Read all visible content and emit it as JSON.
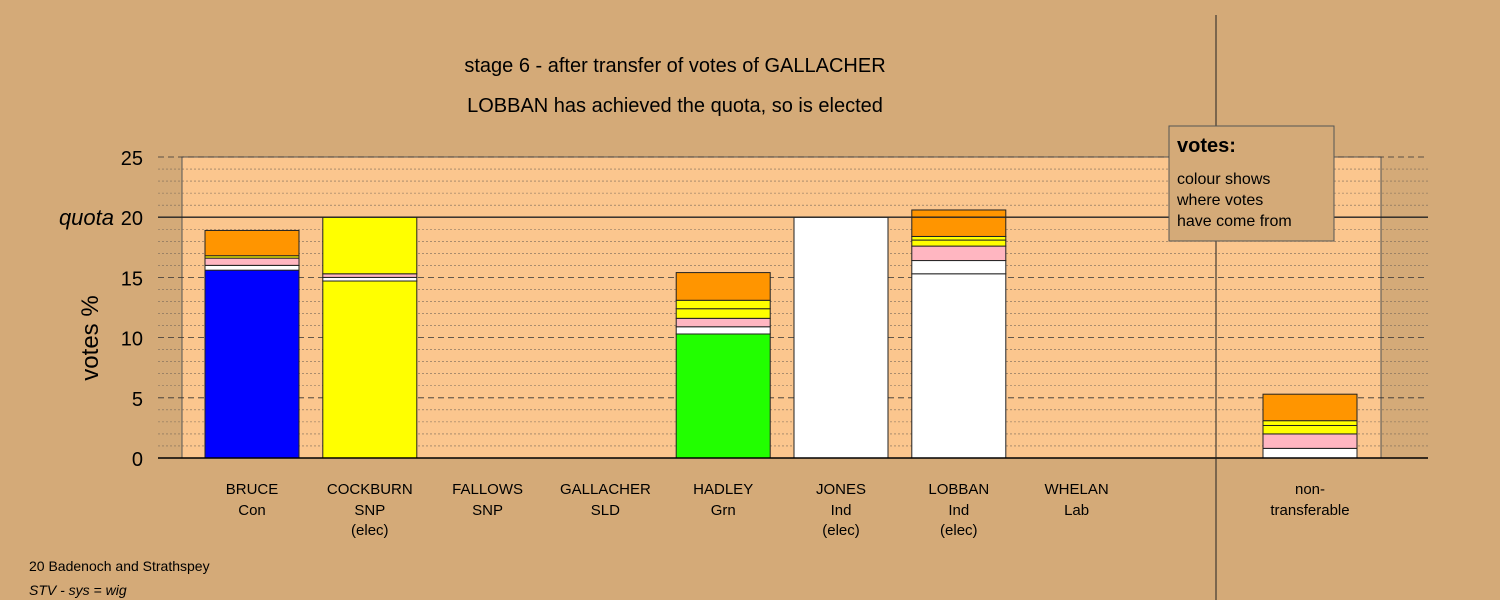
{
  "chart_data": {
    "type": "bar",
    "stacked": true,
    "title": "stage 6 - after transfer of votes of GALLACHER",
    "subtitle": "LOBBAN has achieved the quota, so is elected",
    "ylabel": "votes %",
    "ylim": [
      0,
      25
    ],
    "yticks": [
      "0",
      "5",
      "10",
      "15",
      "20",
      "25"
    ],
    "quota_label": "quota",
    "quota_value": 20,
    "grid": true,
    "colors": {
      "Con": "#0000ff",
      "SNP": "#ffff00",
      "Grn": "#22ff00",
      "Ind": "#ffffff",
      "Lab": "#ffb6c1",
      "SLD": "#ff9500",
      "background": "#d4aa78",
      "plot_area": "#fbc68e"
    },
    "candidates": [
      {
        "name": "BRUCE",
        "party": "Con",
        "status": "",
        "segments": [
          {
            "from": "Con",
            "value": 15.6
          },
          {
            "from": "Ind",
            "value": 0.4
          },
          {
            "from": "Lab",
            "value": 0.6
          },
          {
            "from": "SNP",
            "value": 0.2
          },
          {
            "from": "SLD",
            "value": 2.1
          }
        ]
      },
      {
        "name": "COCKBURN",
        "party": "SNP",
        "status": "(elec)",
        "segments": [
          {
            "from": "SNP",
            "value": 14.7
          },
          {
            "from": "Ind",
            "value": 0.3
          },
          {
            "from": "Lab",
            "value": 0.3
          },
          {
            "from": "SNP",
            "value": 4.7
          }
        ]
      },
      {
        "name": "FALLOWS",
        "party": "SNP",
        "status": "",
        "segments": []
      },
      {
        "name": "GALLACHER",
        "party": "SLD",
        "status": "",
        "segments": []
      },
      {
        "name": "HADLEY",
        "party": "Grn",
        "status": "",
        "segments": [
          {
            "from": "Grn",
            "value": 10.3
          },
          {
            "from": "Ind",
            "value": 0.6
          },
          {
            "from": "Lab",
            "value": 0.7
          },
          {
            "from": "SNP",
            "value": 0.8
          },
          {
            "from": "SNP",
            "value": 0.7
          },
          {
            "from": "SLD",
            "value": 2.3
          }
        ]
      },
      {
        "name": "JONES",
        "party": "Ind",
        "status": "(elec)",
        "segments": [
          {
            "from": "Ind",
            "value": 20.0
          }
        ]
      },
      {
        "name": "LOBBAN",
        "party": "Ind",
        "status": "(elec)",
        "segments": [
          {
            "from": "Ind",
            "value": 15.3
          },
          {
            "from": "Ind",
            "value": 1.1
          },
          {
            "from": "Lab",
            "value": 1.2
          },
          {
            "from": "SNP",
            "value": 0.5
          },
          {
            "from": "SNP",
            "value": 0.3
          },
          {
            "from": "SLD",
            "value": 2.2
          }
        ]
      },
      {
        "name": "WHELAN",
        "party": "Lab",
        "status": "",
        "segments": []
      }
    ],
    "non_transferable": {
      "label_line1": "non-",
      "label_line2": "transferable",
      "segments": [
        {
          "from": "Ind",
          "value": 0.8
        },
        {
          "from": "Lab",
          "value": 1.2
        },
        {
          "from": "SNP",
          "value": 0.7
        },
        {
          "from": "SNP",
          "value": 0.4
        },
        {
          "from": "SLD",
          "value": 2.2
        }
      ]
    },
    "legend": {
      "title": "votes:",
      "lines": [
        "colour shows",
        "where votes",
        "have come from"
      ]
    }
  },
  "footer": {
    "line1": "20 Badenoch and Strathspey",
    "line2": "STV - sys = wig"
  }
}
